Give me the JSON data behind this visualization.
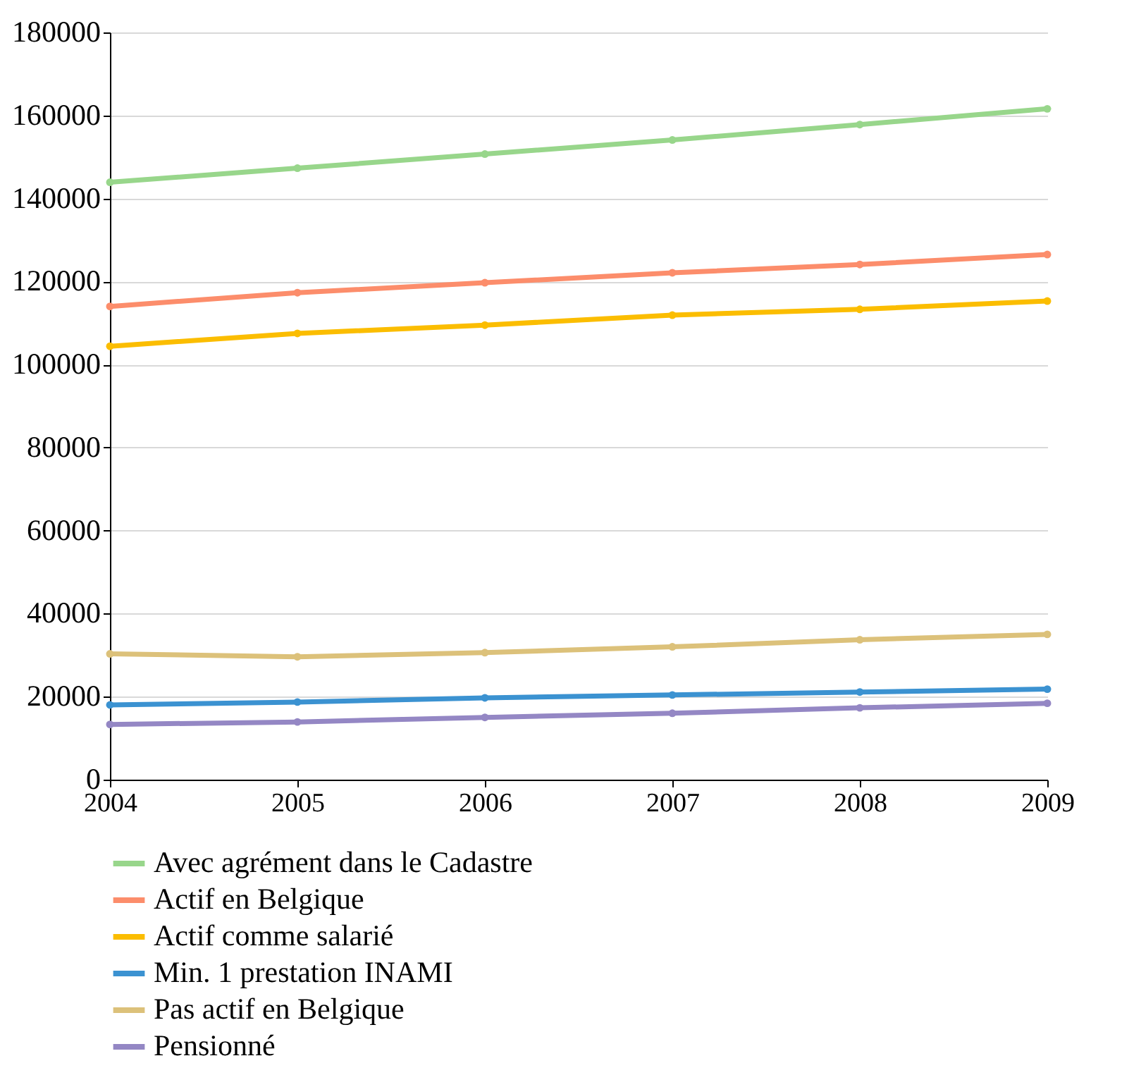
{
  "chart_data": {
    "type": "line",
    "x": [
      2004,
      2005,
      2006,
      2007,
      2008,
      2009
    ],
    "xlim": [
      2004,
      2009
    ],
    "xticks": [
      2004,
      2005,
      2006,
      2007,
      2008,
      2009
    ],
    "ylim": [
      0,
      180000
    ],
    "yticks": [
      0,
      20000,
      40000,
      60000,
      80000,
      100000,
      120000,
      140000,
      160000,
      180000
    ],
    "grid": "y",
    "legend": "bottom",
    "marker": "circle",
    "line_style": "solid",
    "series": [
      {
        "name": "Avec agrément dans le Cadastre",
        "color": "#98d68b",
        "values": [
          143900,
          147300,
          150700,
          154100,
          157800,
          161600
        ]
      },
      {
        "name": "Actif en Belgique",
        "color": "#fc8d6b",
        "values": [
          114000,
          117300,
          119700,
          122100,
          124100,
          126500
        ]
      },
      {
        "name": "Actif comme salarié",
        "color": "#fbbd00",
        "values": [
          104400,
          107500,
          109500,
          111900,
          113300,
          115300
        ]
      },
      {
        "name": "Min. 1 prestation INAMI",
        "color": "#3b92d1",
        "values": [
          18000,
          18700,
          19700,
          20400,
          21100,
          21800
        ]
      },
      {
        "name": "Pas actif en Belgique",
        "color": "#dcc17a",
        "values": [
          30300,
          29600,
          30600,
          32000,
          33700,
          35000
        ]
      },
      {
        "name": "Pensionné",
        "color": "#9487c4",
        "values": [
          13300,
          13900,
          15000,
          16000,
          17300,
          18400
        ]
      }
    ]
  }
}
